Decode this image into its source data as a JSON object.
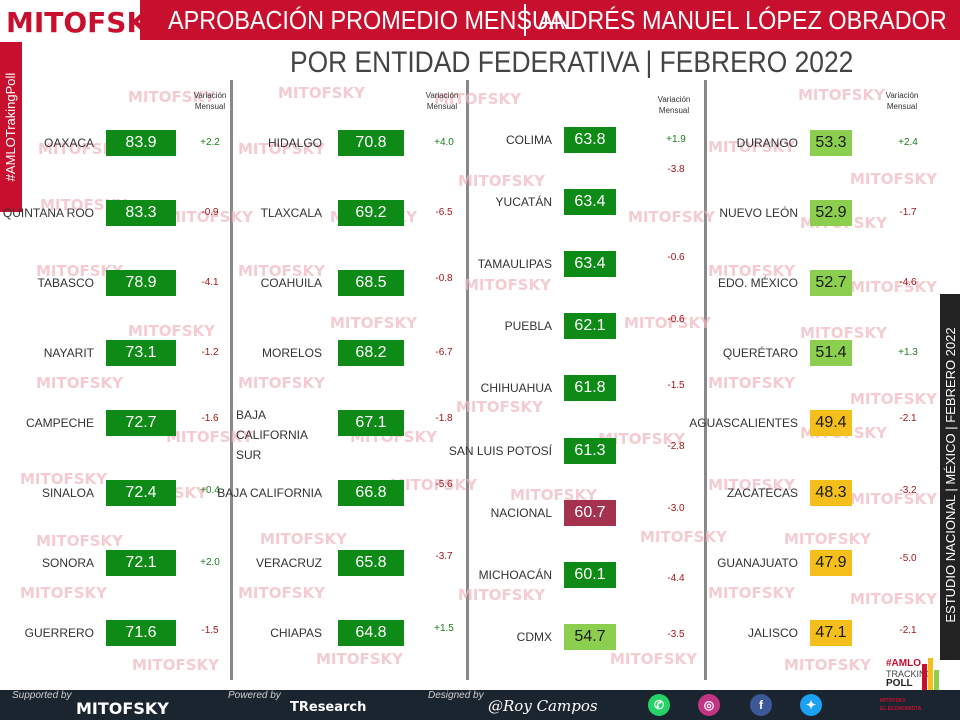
{
  "header": {
    "logo": "MITOFSKY",
    "title_left": "APROBACIÓN PROMEDIO MENSUAL",
    "title_right": "ANDRÉS MANUEL LÓPEZ OBRADOR",
    "subtitle": "POR ENTIDAD FEDERATIVA | FEBRERO 2022",
    "hashtag": "#AMLOTrakingPoll"
  },
  "variation_header": "Variación Mensual",
  "watermark_text": "MITOFSKY",
  "colors": {
    "brand_red": "#c8102e",
    "dark_green": "#0e8a16",
    "light_green": "#8ccf4f",
    "yellow": "#f4be1b",
    "maroon": "#a4314e",
    "positive": "#1a7f1a",
    "negative": "#a01919"
  },
  "side_label": "ESTUDIO NACIONAL | MÉXICO | FEBRERO 2022",
  "footer": {
    "supported_label": "Supported by",
    "supported_brand": "MITOFSKY",
    "powered_label": "Powered by",
    "powered_brand": "TResearch",
    "designed_label": "Designed by",
    "designed_sign": "@Roy Campos",
    "social_icons": [
      "whatsapp-icon",
      "instagram-icon",
      "facebook-icon",
      "twitter-icon"
    ]
  },
  "poll_badge": {
    "hash": "#AMLO",
    "line2": "TRACKING",
    "line3": "POLL",
    "brand1": "MITOFSKY",
    "brand2": "EL ECONOMISTA"
  },
  "chart_data": {
    "type": "table",
    "title": "APROBACIÓN PROMEDIO MENSUAL | ANDRÉS MANUEL LÓPEZ OBRADOR",
    "subtitle": "POR ENTIDAD FEDERATIVA | FEBRERO 2022",
    "columns": [
      "entidad",
      "aprobación",
      "variación mensual"
    ],
    "groups": [
      {
        "rows": [
          {
            "state": "OAXACA",
            "value": 83.9,
            "variation": "+2.2"
          },
          {
            "state": "QUINTANA ROO",
            "value": 83.3,
            "variation": "-0.9"
          },
          {
            "state": "TABASCO",
            "value": 78.9,
            "variation": "-4.1"
          },
          {
            "state": "NAYARIT",
            "value": 73.1,
            "variation": "-1.2"
          },
          {
            "state": "CAMPECHE",
            "value": 72.7,
            "variation": "-1.6"
          },
          {
            "state": "SINALOA",
            "value": 72.4,
            "variation": "+0.4"
          },
          {
            "state": "SONORA",
            "value": 72.1,
            "variation": "+2.0"
          },
          {
            "state": "GUERRERO",
            "value": 71.6,
            "variation": "-1.5"
          }
        ]
      },
      {
        "rows": [
          {
            "state": "HIDALGO",
            "value": 70.8,
            "variation": "+4.0"
          },
          {
            "state": "TLAXCALA",
            "value": 69.2,
            "variation": "-6.5"
          },
          {
            "state": "COAHUILA",
            "value": 68.5,
            "variation": "-0.8"
          },
          {
            "state": "MORELOS",
            "value": 68.2,
            "variation": "-6.7"
          },
          {
            "state": "BAJA CALIFORNIA SUR",
            "value": 67.1,
            "variation": "-1.8"
          },
          {
            "state": "BAJA CALIFORNIA",
            "value": 66.8,
            "variation": "-5.6"
          },
          {
            "state": "VERACRUZ",
            "value": 65.8,
            "variation": "-3.7"
          },
          {
            "state": "CHIAPAS",
            "value": 64.8,
            "variation": "+1.5"
          }
        ]
      },
      {
        "rows": [
          {
            "state": "COLIMA",
            "value": 63.8,
            "variation": "+1.9"
          },
          {
            "state": "YUCATÁN",
            "value": 63.4,
            "variation": "-3.8"
          },
          {
            "state": "TAMAULIPAS",
            "value": 63.4,
            "variation": "-0.6"
          },
          {
            "state": "PUEBLA",
            "value": 62.1,
            "variation": "-0.6"
          },
          {
            "state": "CHIHUAHUA",
            "value": 61.8,
            "variation": "-1.5"
          },
          {
            "state": "SAN LUIS POTOSÍ",
            "value": 61.3,
            "variation": "-2.8"
          },
          {
            "state": "NACIONAL",
            "value": 60.7,
            "variation": "-3.0"
          },
          {
            "state": "MICHOACÁN",
            "value": 60.1,
            "variation": "-4.4"
          },
          {
            "state": "CDMX",
            "value": 54.7,
            "variation": "-3.5"
          }
        ]
      },
      {
        "rows": [
          {
            "state": "DURANGO",
            "value": 53.3,
            "variation": "+2.4"
          },
          {
            "state": "NUEVO LEÓN",
            "value": 52.9,
            "variation": "-1.7"
          },
          {
            "state": "EDO. MÉXICO",
            "value": 52.7,
            "variation": "-4.6"
          },
          {
            "state": "QUERÉTARO",
            "value": 51.4,
            "variation": "+1.3"
          },
          {
            "state": "AGUASCALIENTES",
            "value": 49.4,
            "variation": "-2.1"
          },
          {
            "state": "ZACATECAS",
            "value": 48.3,
            "variation": "-3.2"
          },
          {
            "state": "GUANAJUATO",
            "value": 47.9,
            "variation": "-5.0"
          },
          {
            "state": "JALISCO",
            "value": 47.1,
            "variation": "-2.1"
          }
        ]
      }
    ]
  }
}
